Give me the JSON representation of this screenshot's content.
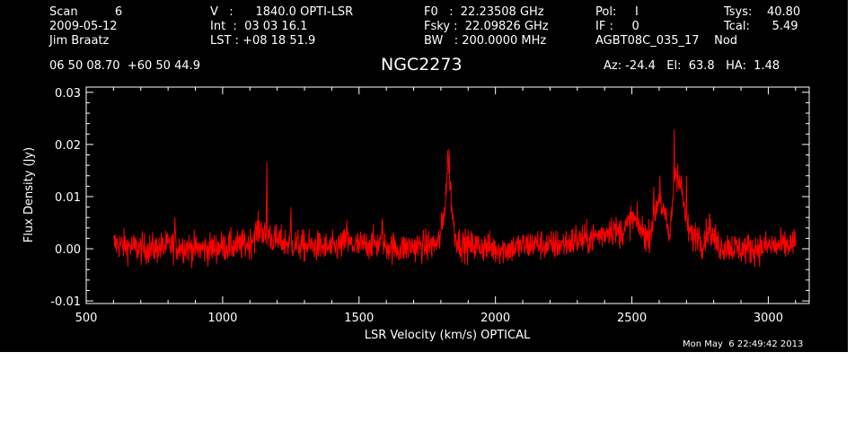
{
  "header": {
    "col1": [
      "Scan          6",
      "2009-05-12",
      "Jim Braatz"
    ],
    "col2": [
      "V   :      1840.0 OPTI-LSR",
      "Int  :  03 03 16.1",
      "LST : +08 18 51.9"
    ],
    "col3": [
      "F0   :  22.23508 GHz",
      "Fsky :  22.09826 GHz",
      "BW   : 200.0000 MHz"
    ],
    "col4": [
      "Pol:     I",
      "IF :     0",
      "AGBT08C_035_17    Nod"
    ],
    "col5": [
      "Tsys:    40.80",
      "Tcal:      5.49"
    ],
    "coords": "06 50 08.70  +60 50 44.9",
    "source": "NGC2273",
    "pointing": "Az: -24.4   El:  63.8   HA:  1.48",
    "timestamp": "Mon May  6 22:49:42 2013"
  },
  "colors": {
    "background": "#000000",
    "foreground": "#ffffff",
    "trace": "#ff0000"
  },
  "chart_data": {
    "type": "line",
    "title": "NGC2273",
    "xlabel": "LSR Velocity (km/s) OPTICAL",
    "ylabel": "Flux Density (Jy)",
    "xlim": [
      500,
      3150
    ],
    "ylim": [
      -0.0105,
      0.031
    ],
    "x_ticks": [
      500,
      1000,
      1500,
      2000,
      2500,
      3000
    ],
    "x_tick_labels": [
      "500",
      "1000",
      "1500",
      "2000",
      "2500",
      "3000"
    ],
    "y_ticks": [
      -0.01,
      0,
      0.01,
      0.02,
      0.03
    ],
    "y_tick_labels": [
      "-0.01",
      "0.00",
      "0.01",
      "0.02",
      "0.03"
    ],
    "grid": false,
    "series": [
      {
        "color": "#ff0000",
        "x_start": 600,
        "x_end": 3100,
        "x": [
          600,
          650,
          700,
          750,
          800,
          850,
          900,
          950,
          1000,
          1050,
          1100,
          1120,
          1140,
          1160,
          1170,
          1180,
          1200,
          1250,
          1300,
          1350,
          1400,
          1450,
          1500,
          1550,
          1600,
          1650,
          1700,
          1750,
          1790,
          1800,
          1810,
          1820,
          1825,
          1830,
          1840,
          1850,
          1870,
          1900,
          1950,
          2000,
          2050,
          2100,
          2150,
          2200,
          2250,
          2300,
          2350,
          2400,
          2420,
          2450,
          2480,
          2500,
          2530,
          2560,
          2580,
          2600,
          2620,
          2640,
          2650,
          2660,
          2680,
          2700,
          2720,
          2740,
          2760,
          2780,
          2800,
          2820,
          2850,
          2900,
          2950,
          3000,
          3050,
          3100
        ],
        "y": [
          0.001,
          0.0005,
          0.0,
          0.0,
          0.0005,
          0.0005,
          0.0,
          0.0,
          0.0005,
          0.0005,
          0.001,
          0.003,
          0.004,
          0.002,
          0.003,
          0.002,
          0.0015,
          0.001,
          0.0005,
          0.0005,
          0.0,
          0.001,
          0.0005,
          0.001,
          0.0005,
          0.0,
          0.0005,
          0.0005,
          0.001,
          0.003,
          0.006,
          0.012,
          0.017,
          0.016,
          0.008,
          0.003,
          0.001,
          0.0005,
          0.0005,
          0.0,
          0.0,
          0.0005,
          0.001,
          0.0005,
          0.001,
          0.0015,
          0.002,
          0.003,
          0.004,
          0.003,
          0.004,
          0.006,
          0.004,
          0.002,
          0.006,
          0.01,
          0.006,
          0.002,
          0.01,
          0.015,
          0.012,
          0.005,
          0.002,
          0.003,
          0.001,
          0.004,
          0.002,
          0.0005,
          0.0005,
          0.0,
          0.0,
          0.0005,
          0.0005,
          0.001
        ],
        "noise_rms": 0.0015,
        "spikes": [
          [
            825,
            0.006
          ],
          [
            1162,
            0.0175
          ],
          [
            1250,
            0.008
          ],
          [
            1455,
            0.006
          ],
          [
            1585,
            0.007
          ],
          [
            1830,
            0.021
          ],
          [
            2295,
            0.005
          ],
          [
            2435,
            0.006
          ],
          [
            2580,
            0.013
          ],
          [
            2603,
            0.016
          ],
          [
            2655,
            0.025
          ],
          [
            2668,
            0.019
          ],
          [
            2700,
            0.014
          ],
          [
            2785,
            0.008
          ]
        ]
      }
    ]
  }
}
